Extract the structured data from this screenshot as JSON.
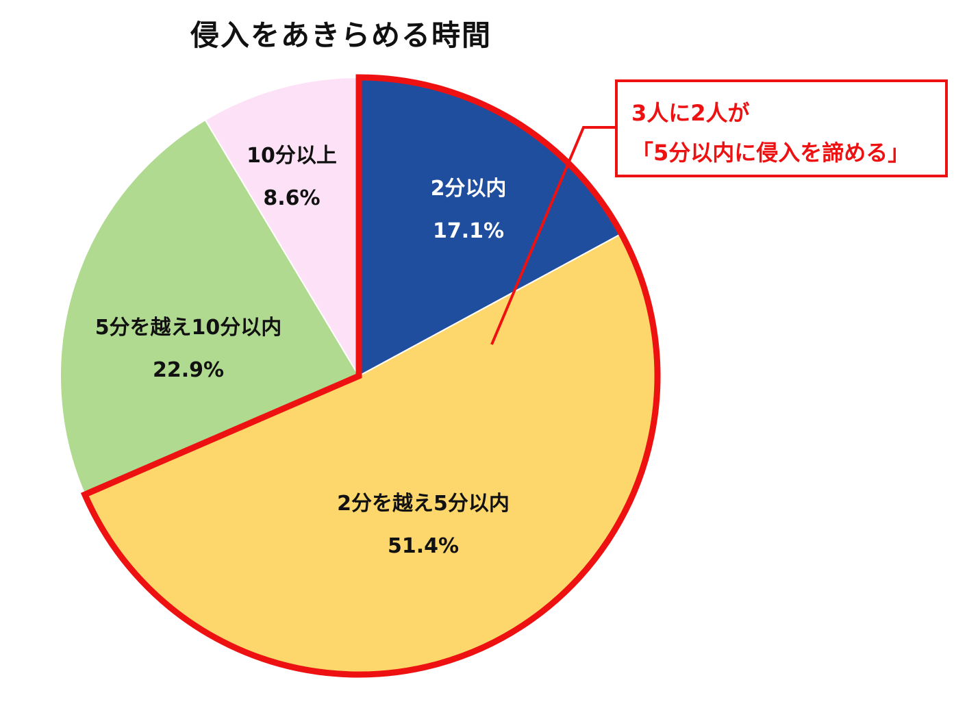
{
  "chart_data": {
    "type": "pie",
    "title": "侵入をあきらめる時間",
    "start_angle_deg": 0,
    "direction": "clockwise",
    "slices": [
      {
        "label": "2分以内",
        "value": 17.1,
        "value_label": "17.1%",
        "color": "#1f4e9e",
        "text_color": "#ffffff"
      },
      {
        "label": "2分を越え5分以内",
        "value": 51.4,
        "value_label": "51.4%",
        "color": "#fdd76b",
        "text_color": "#111111"
      },
      {
        "label": "5分を越え10分以内",
        "value": 22.9,
        "value_label": "22.9%",
        "color": "#b0da8f",
        "text_color": "#111111"
      },
      {
        "label": "10分以上",
        "value": 8.6,
        "value_label": "8.6%",
        "color": "#fde2f7",
        "text_color": "#111111"
      }
    ],
    "highlight": {
      "slices": [
        0,
        1
      ],
      "color": "#ee1111"
    },
    "annotation": {
      "line1": "3人に2人が",
      "line2": "「5分以内に侵入を諦める」",
      "color": "#ee1111"
    }
  }
}
